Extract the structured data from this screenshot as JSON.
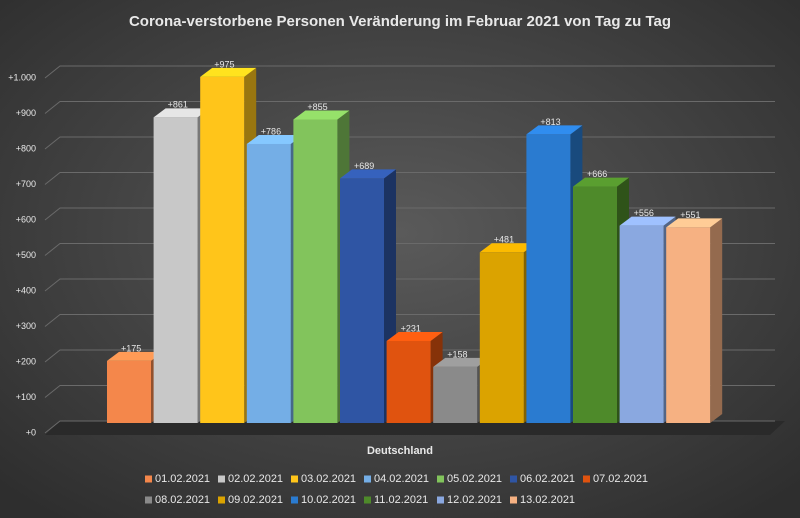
{
  "chart_data": {
    "type": "bar3d",
    "title": "Corona-verstorbene Personen Veränderung  im Februar 2021 von Tag zu Tag",
    "categories": [
      "Deutschland"
    ],
    "series": [
      {
        "name": "01.02.2021",
        "color": "#f4874b",
        "values": [
          175
        ],
        "value_labels": [
          "+175"
        ]
      },
      {
        "name": "02.02.2021",
        "color": "#c8c8c8",
        "values": [
          861
        ],
        "value_labels": [
          "+861"
        ]
      },
      {
        "name": "03.02.2021",
        "color": "#ffc51a",
        "values": [
          975
        ],
        "value_labels": [
          "+975"
        ]
      },
      {
        "name": "04.02.2021",
        "color": "#74aee6",
        "values": [
          786
        ],
        "value_labels": [
          "+786"
        ]
      },
      {
        "name": "05.02.2021",
        "color": "#82c45c",
        "values": [
          855
        ],
        "value_labels": [
          "+855"
        ]
      },
      {
        "name": "06.02.2021",
        "color": "#2f55a4",
        "values": [
          689
        ],
        "value_labels": [
          "+689"
        ]
      },
      {
        "name": "07.02.2021",
        "color": "#e0530f",
        "values": [
          231
        ],
        "value_labels": [
          "+231"
        ]
      },
      {
        "name": "08.02.2021",
        "color": "#8a8a8a",
        "values": [
          158
        ],
        "value_labels": [
          "+158"
        ]
      },
      {
        "name": "09.02.2021",
        "color": "#dba300",
        "values": [
          481
        ],
        "value_labels": [
          "+481"
        ]
      },
      {
        "name": "10.02.2021",
        "color": "#2a7bd0",
        "values": [
          813
        ],
        "value_labels": [
          "+813"
        ]
      },
      {
        "name": "11.02.2021",
        "color": "#4e8a2a",
        "values": [
          666
        ],
        "value_labels": [
          "+666"
        ]
      },
      {
        "name": "12.02.2021",
        "color": "#8aa8e0",
        "values": [
          556
        ],
        "value_labels": [
          "+556"
        ]
      },
      {
        "name": "13.02.2021",
        "color": "#f6b182",
        "values": [
          551
        ],
        "value_labels": [
          "+551"
        ]
      }
    ],
    "ylim": [
      0,
      1000
    ],
    "yticks": [
      {
        "value": 0,
        "label": "+0"
      },
      {
        "value": 100,
        "label": "+100"
      },
      {
        "value": 200,
        "label": "+200"
      },
      {
        "value": 300,
        "label": "+300"
      },
      {
        "value": 400,
        "label": "+400"
      },
      {
        "value": 500,
        "label": "+500"
      },
      {
        "value": 600,
        "label": "+600"
      },
      {
        "value": 700,
        "label": "+700"
      },
      {
        "value": 800,
        "label": "+800"
      },
      {
        "value": 900,
        "label": "+900"
      },
      {
        "value": 1000,
        "label": "+1.000"
      }
    ],
    "grid": true,
    "legend": "bottom"
  }
}
